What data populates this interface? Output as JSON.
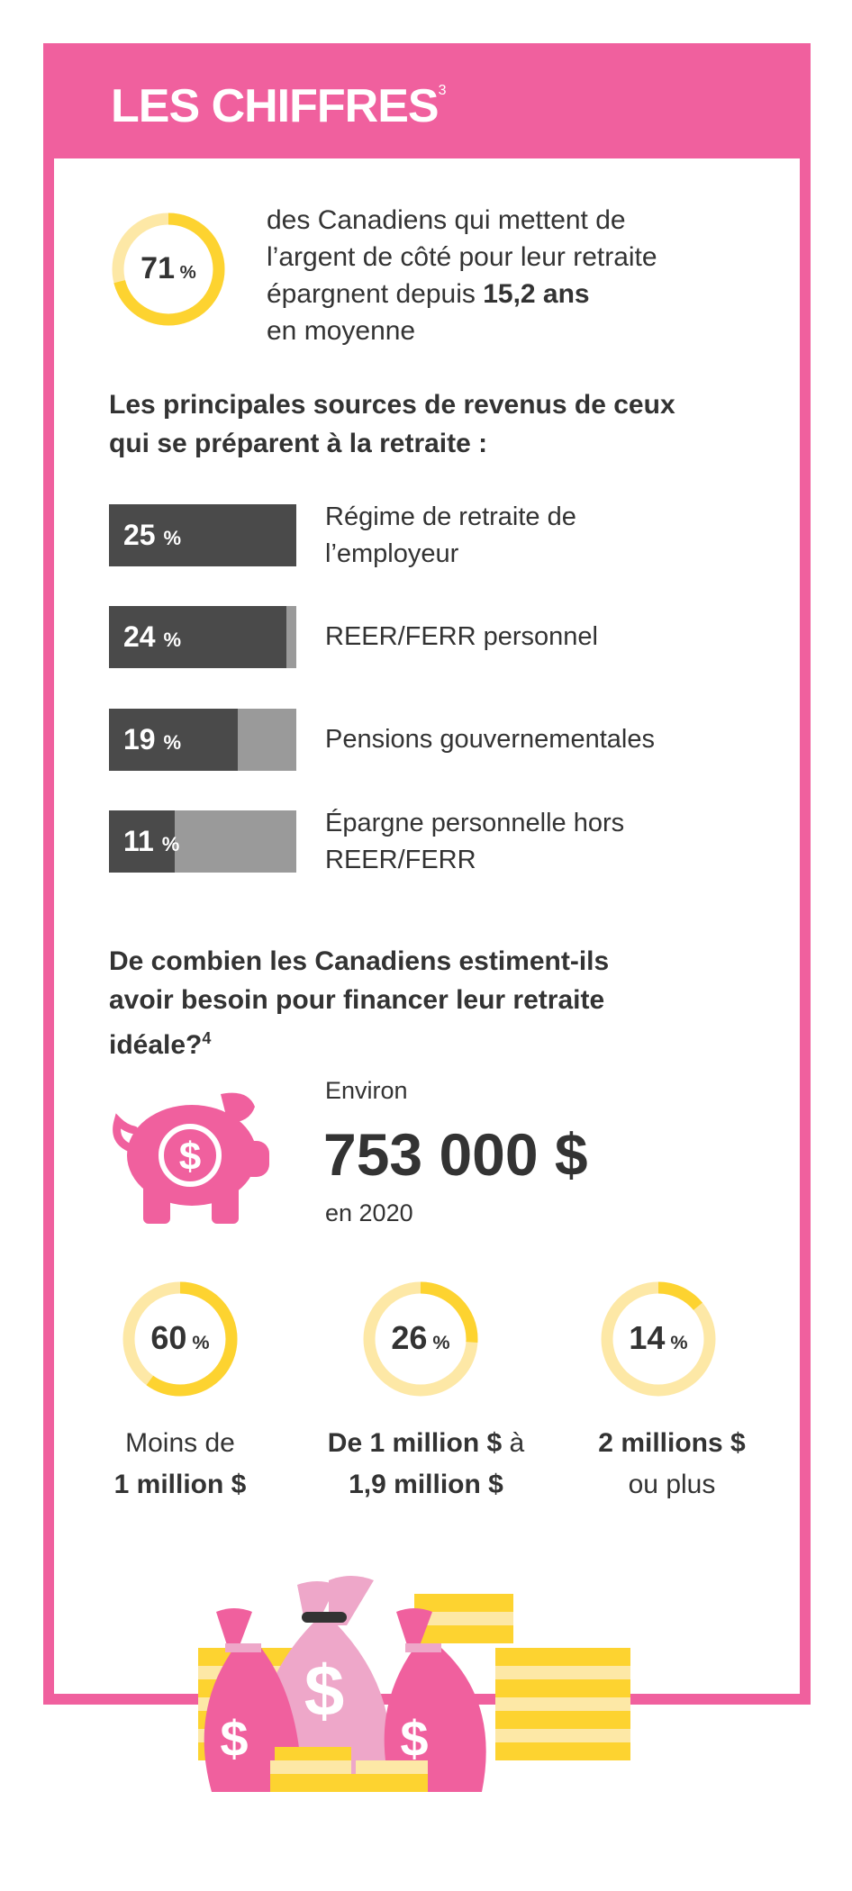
{
  "header": {
    "title": "LES CHIFFRES",
    "footnote": "3"
  },
  "stat_savers": {
    "percent": 71,
    "percent_label": "71",
    "unit": "%",
    "text_line1": "des Canadiens qui mettent de",
    "text_line2": "l’argent de côté pour leur retraite",
    "text_line3_prefix": "épargnent depuis ",
    "text_line3_bold": "15,2 ans",
    "text_line4": "en moyenne"
  },
  "sources": {
    "heading_line1": "Les principales sources de revenus de ceux",
    "heading_line2": "qui se préparent à la retraite :",
    "items": [
      {
        "value": 25,
        "value_label": "25",
        "unit": "%",
        "label_line1": "Régime de retraite de",
        "label_line2": "l’employeur"
      },
      {
        "value": 24,
        "value_label": "24",
        "unit": "%",
        "label_line1": "REER/FERR personnel",
        "label_line2": ""
      },
      {
        "value": 19,
        "value_label": "19",
        "unit": "%",
        "label_line1": "Pensions gouvernementales",
        "label_line2": ""
      },
      {
        "value": 11,
        "value_label": "11",
        "unit": "%",
        "label_line1": "Épargne personnelle hors",
        "label_line2": "REER/FERR"
      }
    ]
  },
  "estimate": {
    "heading_line1": "De combien les Canadiens estiment-ils",
    "heading_line2": "avoir besoin pour financer leur retraite",
    "heading_line3": "idéale?",
    "footnote": "4",
    "prefix": "Environ",
    "amount": "753 000 $",
    "suffix": "en 2020"
  },
  "breakdown": [
    {
      "percent": 60,
      "percent_label": "60",
      "unit": "%",
      "line1_normal": "Moins de",
      "line1_bold": "",
      "line1_tail": "",
      "line2_bold": "1 million $",
      "line2_normal": ""
    },
    {
      "percent": 26,
      "percent_label": "26",
      "unit": "%",
      "line1_normal": "",
      "line1_bold": "De 1 million $",
      "line1_tail": " à",
      "line2_bold": "1,9 million $",
      "line2_normal": ""
    },
    {
      "percent": 14,
      "percent_label": "14",
      "unit": "%",
      "line1_normal": "",
      "line1_bold": "2 millions $",
      "line1_tail": "",
      "line2_bold": "",
      "line2_normal": "ou plus"
    }
  ],
  "colors": {
    "pink": "#f0609e",
    "light_pink": "#eea7c9",
    "yellow": "#fdd330",
    "light_yellow": "#fde8a6",
    "dark_gray": "#4a4a4a",
    "light_gray": "#9a9a9a"
  }
}
